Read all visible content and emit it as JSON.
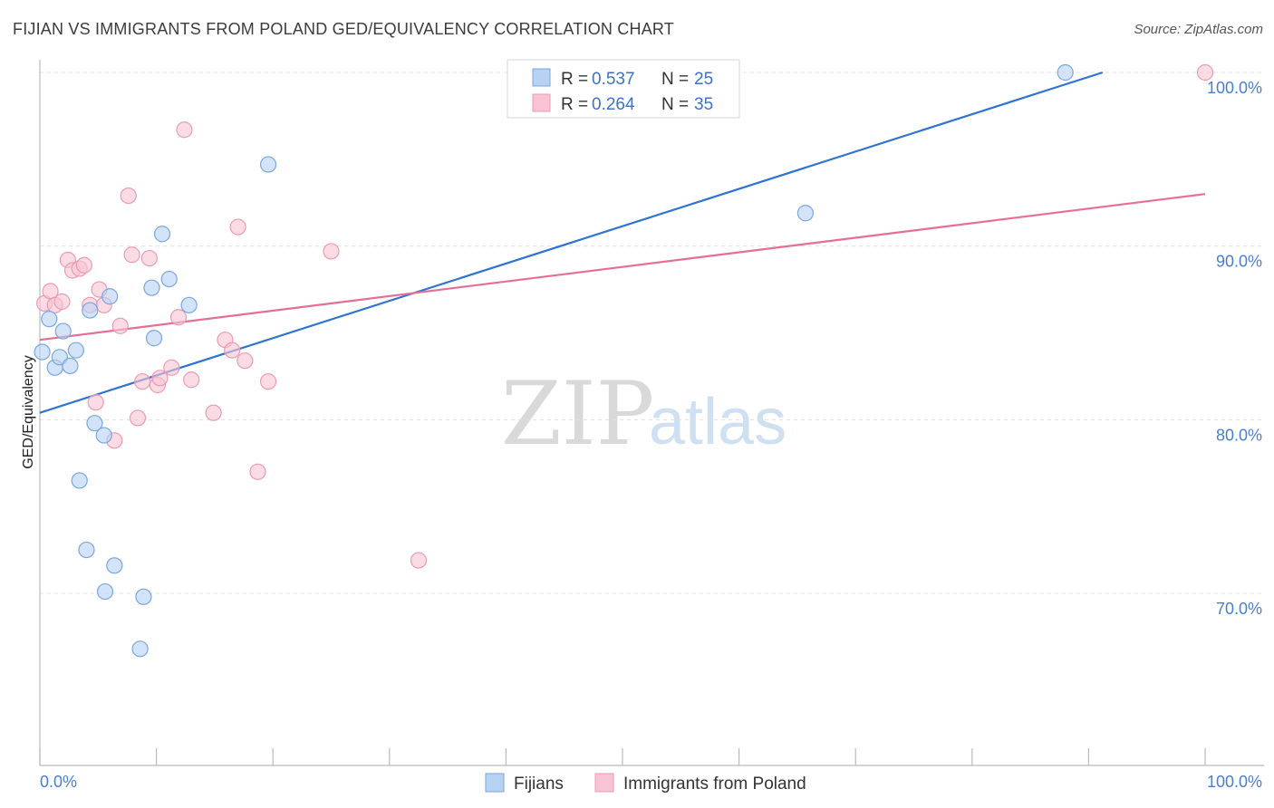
{
  "header": {
    "title": "FIJIAN VS IMMIGRANTS FROM POLAND GED/EQUIVALENCY CORRELATION CHART",
    "source": "Source: ZipAtlas.com"
  },
  "watermark": {
    "zip": "ZIP",
    "atlas": "atlas"
  },
  "colors": {
    "blue_fill": "#b8d2f4",
    "blue_stroke": "#7aa6e0",
    "blue_line": "#2f74d0",
    "pink_fill": "#f8c4d4",
    "pink_stroke": "#eb9ab4",
    "pink_line": "#e46f96",
    "tick_label": "#4a7fd0",
    "grid": "#e0e0e0"
  },
  "legend": {
    "rows": [
      {
        "r_label": "R = ",
        "r_value": "0.537",
        "n_label": "N = ",
        "n_value": "25"
      },
      {
        "r_label": "R = ",
        "r_value": "0.264",
        "n_label": "N = ",
        "n_value": "35"
      }
    ]
  },
  "chart_data": {
    "type": "scatter",
    "title": "FIJIAN VS IMMIGRANTS FROM POLAND GED/EQUIVALENCY CORRELATION CHART",
    "xlabel": "",
    "ylabel": "GED/Equivalency",
    "xlim": [
      0,
      100
    ],
    "ylim": [
      61,
      101.6
    ],
    "x_tick_labels": [
      {
        "value": 0,
        "label": "0.0%"
      },
      {
        "value": 100,
        "label": "100.0%"
      }
    ],
    "x_minor_ticks": [
      0,
      10,
      20,
      30,
      40,
      50,
      60,
      70,
      80,
      90,
      100
    ],
    "y_ticks": [
      {
        "value": 70,
        "label": "70.0%"
      },
      {
        "value": 80,
        "label": "80.0%"
      },
      {
        "value": 90,
        "label": "90.0%"
      },
      {
        "value": 100,
        "label": "100.0%"
      }
    ],
    "grid": true,
    "legend_position": "top-center",
    "series": [
      {
        "name": "Fijians",
        "color": "#b8d2f4",
        "r": 0.537,
        "n": 25,
        "trend": {
          "x": [
            0,
            91.2
          ],
          "y": [
            80.4,
            100.0
          ]
        },
        "points": [
          [
            0.2,
            83.9
          ],
          [
            0.8,
            85.8
          ],
          [
            1.3,
            83.0
          ],
          [
            1.7,
            83.6
          ],
          [
            2.0,
            85.1
          ],
          [
            2.6,
            83.1
          ],
          [
            3.1,
            84.0
          ],
          [
            3.4,
            76.5
          ],
          [
            4.0,
            72.5
          ],
          [
            4.3,
            86.3
          ],
          [
            4.7,
            79.8
          ],
          [
            5.5,
            79.1
          ],
          [
            5.6,
            70.1
          ],
          [
            6.0,
            87.1
          ],
          [
            6.4,
            71.6
          ],
          [
            8.6,
            66.8
          ],
          [
            8.9,
            69.8
          ],
          [
            9.6,
            87.6
          ],
          [
            9.8,
            84.7
          ],
          [
            10.5,
            90.7
          ],
          [
            11.1,
            88.1
          ],
          [
            12.8,
            86.6
          ],
          [
            19.6,
            94.7
          ],
          [
            65.7,
            91.9
          ],
          [
            88.0,
            100.0
          ]
        ]
      },
      {
        "name": "Immigrants from Poland",
        "color": "#f8c4d4",
        "r": 0.264,
        "n": 35,
        "trend": {
          "x": [
            0,
            100
          ],
          "y": [
            84.6,
            93.0
          ]
        },
        "points": [
          [
            0.4,
            86.7
          ],
          [
            0.9,
            87.4
          ],
          [
            1.3,
            86.6
          ],
          [
            1.9,
            86.8
          ],
          [
            2.4,
            89.2
          ],
          [
            2.8,
            88.6
          ],
          [
            3.4,
            88.7
          ],
          [
            3.8,
            88.9
          ],
          [
            4.3,
            86.6
          ],
          [
            4.8,
            81.0
          ],
          [
            5.1,
            87.5
          ],
          [
            5.5,
            86.6
          ],
          [
            6.4,
            78.8
          ],
          [
            6.9,
            85.4
          ],
          [
            7.6,
            92.9
          ],
          [
            7.9,
            89.5
          ],
          [
            8.4,
            80.1
          ],
          [
            8.8,
            82.2
          ],
          [
            9.4,
            89.3
          ],
          [
            10.1,
            82.0
          ],
          [
            10.3,
            82.4
          ],
          [
            11.3,
            83.0
          ],
          [
            11.9,
            85.9
          ],
          [
            12.4,
            96.7
          ],
          [
            13.0,
            82.3
          ],
          [
            14.9,
            80.4
          ],
          [
            15.9,
            84.6
          ],
          [
            16.5,
            84.0
          ],
          [
            17.0,
            91.1
          ],
          [
            17.6,
            83.4
          ],
          [
            18.7,
            77.0
          ],
          [
            19.6,
            82.2
          ],
          [
            25.0,
            89.7
          ],
          [
            32.5,
            71.9
          ],
          [
            100.0,
            100.0
          ]
        ]
      }
    ]
  }
}
